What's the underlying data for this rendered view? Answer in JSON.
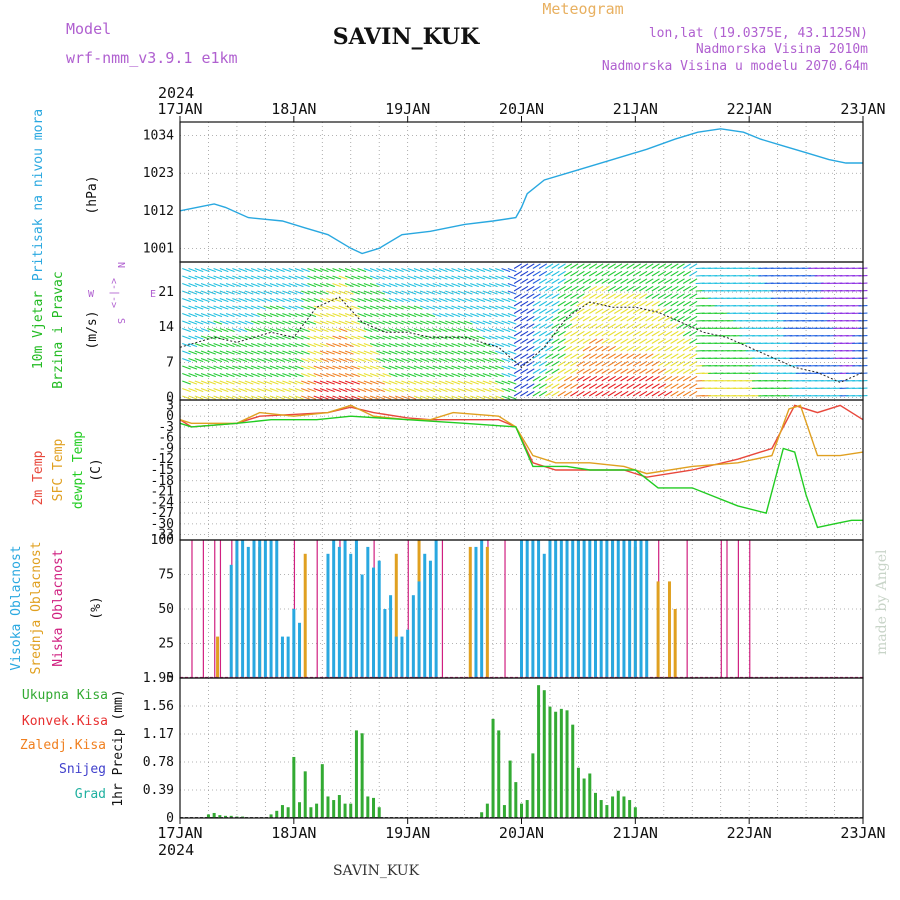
{
  "header": {
    "model_label": "Model",
    "model_name": "wrf-nmm_v3.9.1 e1km",
    "station": "SAVIN_KUK",
    "title": "Meteogram",
    "coords": "lon,lat (19.0375E, 43.1125N)",
    "elevation": "Nadmorska Visina 2010m",
    "model_elevation": "Nadmorska Visina u modelu 2070.64m",
    "year_top": "2024",
    "year_bottom": "2024",
    "footer_station": "SAVIN_KUK",
    "credit": "made by Angel"
  },
  "colors": {
    "pressure": "#29a8e0",
    "temp2m": "#e8483c",
    "sfctemp": "#e0a020",
    "dewpt": "#22cc22",
    "wind_label_green": "#22bb22",
    "wind_label_purple": "#b060d0",
    "high_cloud": "#29a8e0",
    "mid_cloud": "#e0a020",
    "low_cloud": "#d02080",
    "rain_total": "#33aa33",
    "rain_conv": "#e83030",
    "rain_frozen": "#f08020",
    "snow": "#4040cc",
    "graupel": "#20b0a0",
    "model_text": "#b060d0",
    "title_text": "#e8b060"
  },
  "x_axis": {
    "start_day": 17,
    "days": 6,
    "tick_labels": [
      "17JAN",
      "18JAN",
      "19JAN",
      "20JAN",
      "21JAN",
      "22JAN",
      "23JAN"
    ]
  },
  "panel_labels": {
    "pressure": {
      "name": "Pritisak na nivou mora",
      "unit": "(hPa)"
    },
    "wind": {
      "name1": "10m Vjetar",
      "name2": "Brzina i Pravac",
      "unit": "(m/s)",
      "compass_n": "N",
      "compass_s": "S",
      "compass_e": "E",
      "compass_w": "W",
      "compass_mark": "<-|->"
    },
    "temp": {
      "name1": "2m Temp",
      "name2": "SFC Temp",
      "name3": "dewpt Temp",
      "unit": "(C)"
    },
    "cloud": {
      "name1": "Visoka Oblacnost",
      "name2": "Srednja Oblacnost",
      "name3": "Niska Oblacnost",
      "unit": "(%)"
    },
    "precip": {
      "name1": "Ukupna Kisa",
      "name2": "Konvek.Kisa",
      "name3": "Zaledj.Kisa",
      "name4": "Snijeg",
      "name5": "Grad",
      "unit": "1hr Precip (mm)"
    }
  },
  "chart_data": [
    {
      "type": "line",
      "panel": "pressure",
      "yticks": [
        1001,
        1012,
        1023,
        1034
      ],
      "ylim": [
        997,
        1038
      ],
      "series": [
        {
          "key": "pressure",
          "x": [
            0,
            0.3,
            0.4,
            0.6,
            0.9,
            1.1,
            1.3,
            1.5,
            1.6,
            1.75,
            1.95,
            2.2,
            2.5,
            2.75,
            2.95,
            3.0,
            3.05,
            3.2,
            3.5,
            3.8,
            4.1,
            4.35,
            4.55,
            4.75,
            4.95,
            5.1,
            5.3,
            5.5,
            5.7,
            5.85,
            6.0
          ],
          "y": [
            1012,
            1014,
            1013,
            1010,
            1009,
            1007,
            1005,
            1001,
            999.5,
            1001,
            1005,
            1006,
            1008,
            1009,
            1010,
            1013,
            1017,
            1021,
            1024,
            1027,
            1030,
            1033,
            1035,
            1036,
            1035,
            1033,
            1031,
            1029,
            1027,
            1026,
            1026
          ]
        }
      ]
    },
    {
      "type": "line",
      "panel": "wind",
      "yticks": [
        0,
        7,
        14,
        21
      ],
      "ylim": [
        -0.5,
        27
      ],
      "series": [
        {
          "key": "wind_speed",
          "x": [
            0,
            0.3,
            0.5,
            0.8,
            1.0,
            1.2,
            1.4,
            1.6,
            1.8,
            2.0,
            2.2,
            2.5,
            2.8,
            3.0,
            3.2,
            3.4,
            3.6,
            3.8,
            4.0,
            4.2,
            4.4,
            4.6,
            4.8,
            5.0,
            5.2,
            5.4,
            5.6,
            5.8,
            6.0
          ],
          "y": [
            10,
            12,
            11,
            13,
            12,
            18,
            20,
            15,
            13,
            13,
            12,
            12,
            10,
            6,
            10,
            16,
            19,
            18,
            18,
            17,
            15,
            13,
            12,
            10,
            8,
            6,
            5,
            3,
            5
          ]
        }
      ]
    },
    {
      "type": "line",
      "panel": "temperature",
      "yticks": [
        3,
        0,
        -3,
        -6,
        -9,
        -12,
        -15,
        -18,
        -21,
        -24,
        -27,
        -30,
        -33
      ],
      "ylim": [
        -34.5,
        4.5
      ],
      "series": [
        {
          "key": "temp2m",
          "x": [
            0,
            0.1,
            0.5,
            0.7,
            1.0,
            1.3,
            1.5,
            1.7,
            2.0,
            2.2,
            2.5,
            2.8,
            2.95,
            3.1,
            3.3,
            3.6,
            3.9,
            4.1,
            4.5,
            4.9,
            5.2,
            5.4,
            5.6,
            5.8,
            6.0
          ],
          "y": [
            -1,
            -3,
            -2,
            0,
            0.5,
            1,
            2.5,
            1,
            -0.5,
            -1,
            -1,
            -1,
            -3,
            -13,
            -15,
            -15,
            -15,
            -17,
            -15,
            -12,
            -9,
            3,
            1,
            3,
            -1
          ]
        },
        {
          "key": "sfctemp",
          "x": [
            0,
            0.1,
            0.5,
            0.7,
            1.0,
            1.3,
            1.5,
            1.7,
            2.0,
            2.2,
            2.4,
            2.8,
            2.95,
            3.1,
            3.3,
            3.6,
            3.9,
            4.1,
            4.5,
            4.9,
            5.2,
            5.35,
            5.45,
            5.6,
            5.8,
            6.0
          ],
          "y": [
            -1,
            -2,
            -2,
            1,
            0,
            1,
            3,
            0,
            -1,
            -1,
            1,
            0,
            -3,
            -11,
            -13,
            -13,
            -14,
            -16,
            -14,
            -13,
            -11,
            2,
            3,
            -11,
            -11,
            -10
          ]
        },
        {
          "key": "dewpt",
          "x": [
            0,
            0.1,
            0.5,
            0.8,
            1.2,
            1.5,
            2.0,
            2.5,
            2.95,
            3.1,
            3.4,
            3.6,
            4.0,
            4.2,
            4.5,
            4.9,
            5.15,
            5.3,
            5.4,
            5.5,
            5.6,
            5.75,
            5.9,
            6.0
          ],
          "y": [
            -2,
            -3,
            -2,
            -1,
            -1,
            0,
            -1,
            -2,
            -3,
            -14,
            -14,
            -15,
            -15,
            -20,
            -20,
            -25,
            -27,
            -9,
            -10,
            -22,
            -31,
            -30,
            -29,
            -29
          ]
        }
      ]
    },
    {
      "type": "bar",
      "panel": "cloud",
      "yticks": [
        0,
        25,
        50,
        75,
        100
      ],
      "ylim": [
        0,
        100
      ],
      "series": [
        {
          "key": "low_cloud",
          "x": [
            0.1,
            0.2,
            0.3,
            0.35,
            0.45,
            0.7,
            1.0,
            1.2,
            1.4,
            1.7,
            2.0,
            2.3,
            2.7,
            2.85,
            3.15,
            3.4,
            3.6,
            4.0,
            4.2,
            4.45,
            4.75,
            4.8,
            4.9,
            5.0
          ],
          "y": [
            100,
            100,
            100,
            100,
            100,
            100,
            100,
            100,
            100,
            100,
            100,
            100,
            100,
            100,
            100,
            100,
            100,
            100,
            100,
            100,
            100,
            100,
            100,
            100
          ]
        },
        {
          "key": "mid_cloud",
          "x": [
            0.33,
            0.5,
            0.7,
            1.1,
            1.3,
            1.55,
            1.9,
            2.1,
            2.55,
            2.7,
            3.5,
            3.8,
            4.0,
            4.2,
            4.3,
            4.35
          ],
          "y": [
            30,
            85,
            95,
            90,
            55,
            95,
            90,
            100,
            95,
            95,
            100,
            100,
            95,
            70,
            70,
            50
          ]
        },
        {
          "key": "high_cloud",
          "x": [
            0.45,
            0.5,
            0.55,
            0.6,
            0.65,
            0.7,
            0.75,
            0.8,
            0.85,
            0.9,
            0.95,
            1.0,
            1.05,
            1.3,
            1.35,
            1.4,
            1.45,
            1.5,
            1.55,
            1.6,
            1.65,
            1.7,
            1.75,
            1.8,
            1.85,
            1.9,
            1.95,
            2.0,
            2.05,
            2.1,
            2.15,
            2.2,
            2.25,
            2.6,
            2.65,
            3.0,
            3.05,
            3.1,
            3.15,
            3.2,
            3.25,
            3.3,
            3.35,
            3.4,
            3.45,
            3.5,
            3.55,
            3.6,
            3.65,
            3.7,
            3.75,
            3.8,
            3.85,
            3.9,
            3.95,
            4.0,
            4.05,
            4.1
          ],
          "y": [
            82,
            100,
            100,
            95,
            100,
            100,
            100,
            100,
            100,
            30,
            30,
            50,
            40,
            90,
            100,
            95,
            100,
            90,
            100,
            75,
            95,
            80,
            85,
            50,
            60,
            30,
            30,
            35,
            60,
            70,
            90,
            85,
            100,
            95,
            100,
            100,
            100,
            100,
            100,
            90,
            100,
            100,
            100,
            100,
            100,
            100,
            100,
            100,
            100,
            100,
            100,
            100,
            100,
            100,
            100,
            100,
            100,
            100
          ]
        }
      ]
    },
    {
      "type": "bar",
      "panel": "precip",
      "yticks": [
        0,
        0.39,
        0.78,
        1.17,
        1.56,
        1.95
      ],
      "ylim": [
        0,
        1.95
      ],
      "series": [
        {
          "key": "rain_total",
          "x": [
            0.25,
            0.3,
            0.35,
            0.4,
            0.45,
            0.5,
            0.55,
            0.8,
            0.85,
            0.9,
            0.95,
            1.0,
            1.05,
            1.1,
            1.15,
            1.2,
            1.25,
            1.3,
            1.35,
            1.4,
            1.45,
            1.5,
            1.55,
            1.6,
            1.65,
            1.7,
            1.75,
            2.65,
            2.7,
            2.75,
            2.8,
            2.85,
            2.9,
            2.95,
            3.0,
            3.05,
            3.1,
            3.15,
            3.2,
            3.25,
            3.3,
            3.35,
            3.4,
            3.45,
            3.5,
            3.55,
            3.6,
            3.65,
            3.7,
            3.75,
            3.8,
            3.85,
            3.9,
            3.95,
            4.0
          ],
          "y": [
            0.05,
            0.07,
            0.04,
            0.03,
            0.03,
            0.02,
            0.02,
            0.05,
            0.1,
            0.18,
            0.15,
            0.85,
            0.22,
            0.65,
            0.15,
            0.2,
            0.75,
            0.3,
            0.25,
            0.32,
            0.2,
            0.2,
            1.22,
            1.18,
            0.3,
            0.28,
            0.15,
            0.08,
            0.2,
            1.38,
            1.22,
            0.18,
            0.8,
            0.5,
            0.2,
            0.25,
            0.9,
            1.85,
            1.78,
            1.55,
            1.48,
            1.52,
            1.5,
            1.3,
            0.7,
            0.55,
            0.62,
            0.35,
            0.25,
            0.18,
            0.3,
            0.38,
            0.3,
            0.25,
            0.15
          ]
        }
      ]
    }
  ]
}
